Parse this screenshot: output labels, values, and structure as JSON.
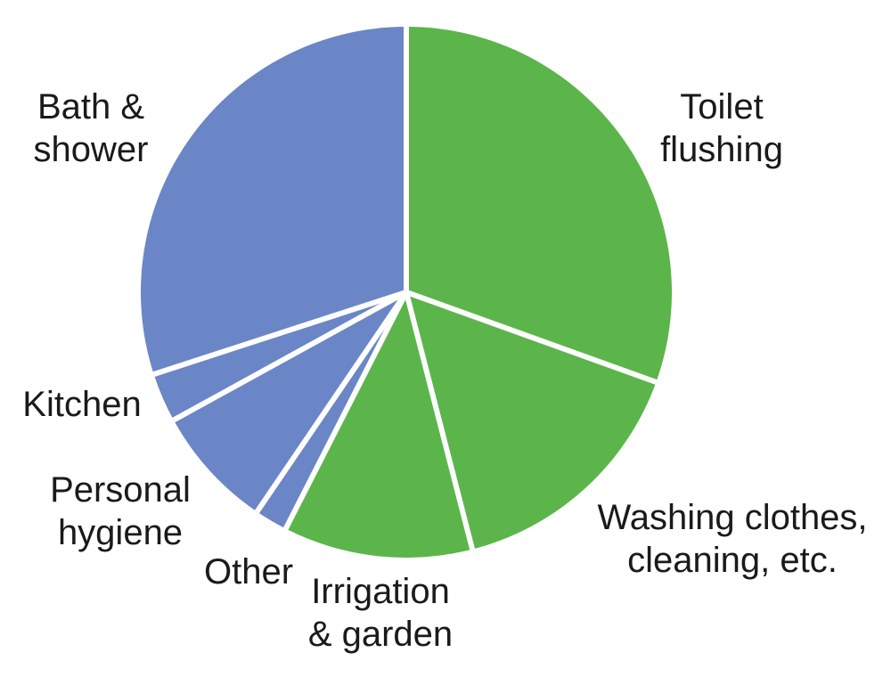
{
  "chart_data": {
    "type": "pie",
    "title": "",
    "start_angle_deg": 0,
    "direction": "clockwise",
    "colors": {
      "green": "#5bb54a",
      "blue": "#6b86c6",
      "separator": "#ffffff"
    },
    "slices": [
      {
        "label": "Toilet flushing",
        "lines": [
          "Toilet",
          "flushing"
        ],
        "value": 30.5,
        "color": "#5bb54a"
      },
      {
        "label": "Washing clothes, cleaning, etc.",
        "lines": [
          "Washing clothes,",
          "cleaning, etc."
        ],
        "value": 15.5,
        "color": "#5bb54a"
      },
      {
        "label": "Irrigation & garden",
        "lines": [
          "Irrigation",
          "& garden"
        ],
        "value": 11.5,
        "color": "#5bb54a"
      },
      {
        "label": "Other",
        "lines": [
          "Other"
        ],
        "value": 2.0,
        "color": "#6b86c6"
      },
      {
        "label": "Personal hygiene",
        "lines": [
          "Personal",
          "hygiene"
        ],
        "value": 7.5,
        "color": "#6b86c6"
      },
      {
        "label": "Kitchen",
        "lines": [
          "Kitchen"
        ],
        "value": 3.0,
        "color": "#6b86c6"
      },
      {
        "label": "Bath & shower",
        "lines": [
          "Bath &",
          "shower"
        ],
        "value": 30.0,
        "color": "#6b86c6"
      }
    ]
  }
}
